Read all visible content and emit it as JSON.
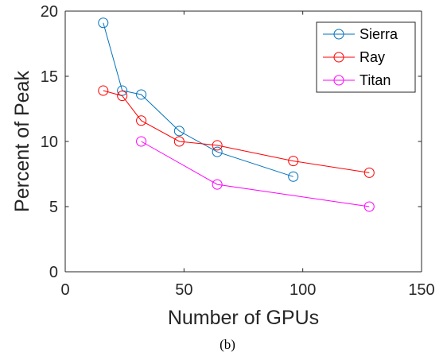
{
  "chart_data": {
    "type": "line",
    "title": "",
    "xlabel": "Number of GPUs",
    "ylabel": "Percent of Peak",
    "xlim": [
      0,
      150
    ],
    "ylim": [
      0,
      20
    ],
    "xticks": [
      0,
      50,
      100,
      150
    ],
    "yticks": [
      0,
      5,
      10,
      15,
      20
    ],
    "grid": false,
    "legend_position": "top-right",
    "marker": "circle",
    "series": [
      {
        "name": "Sierra",
        "color": "#0072BD",
        "x": [
          16,
          24,
          32,
          48,
          64,
          96
        ],
        "y": [
          19.1,
          13.9,
          13.6,
          10.8,
          9.2,
          7.3
        ]
      },
      {
        "name": "Ray",
        "color": "#FF0000",
        "x": [
          16,
          24,
          32,
          48,
          64,
          96,
          128
        ],
        "y": [
          13.9,
          13.5,
          11.6,
          10.0,
          9.7,
          8.5,
          7.6
        ]
      },
      {
        "name": "Titan",
        "color": "#FF00FF",
        "x": [
          32,
          64,
          128
        ],
        "y": [
          10.0,
          6.7,
          5.0
        ]
      }
    ]
  },
  "caption": "(b)"
}
